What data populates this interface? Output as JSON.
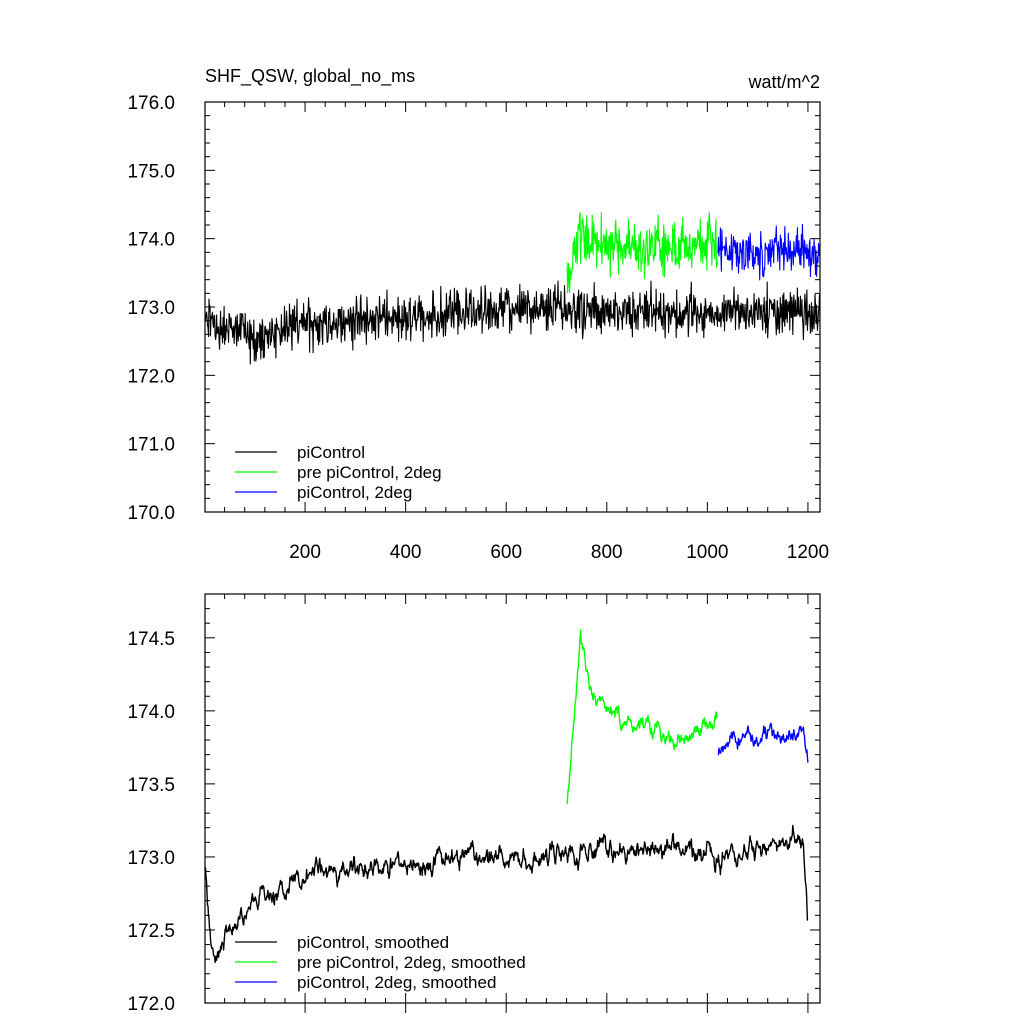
{
  "chart_data": [
    {
      "type": "line",
      "title": "SHF_QSW, global_no_ms",
      "units_label": "watt/m^2",
      "xlim": [
        1,
        1224
      ],
      "ylim": [
        170.0,
        176.0
      ],
      "x_ticks": [
        200,
        400,
        600,
        800,
        1000,
        1200
      ],
      "y_ticks": [
        170.0,
        171.0,
        172.0,
        173.0,
        174.0,
        175.0,
        176.0
      ],
      "y_tick_labels": [
        "170.0",
        "171.0",
        "172.0",
        "173.0",
        "174.0",
        "175.0",
        "176.0"
      ],
      "x_minor_step": 40,
      "y_minor_step": 0.2,
      "grid": false,
      "legend_position": "bottom-left",
      "series": [
        {
          "name": "piControl",
          "color": "#000000",
          "x_range": [
            1,
            1224
          ],
          "anchors": [
            [
              1,
              172.8
            ],
            [
              100,
              172.55
            ],
            [
              200,
              172.75
            ],
            [
              400,
              172.85
            ],
            [
              600,
              172.95
            ],
            [
              720,
              173.0
            ],
            [
              900,
              172.9
            ],
            [
              1100,
              172.95
            ],
            [
              1224,
              172.9
            ]
          ],
          "amplitude": 0.5
        },
        {
          "name": "pre piControl, 2deg",
          "color": "#00ff00",
          "x_range": [
            721,
            1020
          ],
          "anchors": [
            [
              721,
              173.3
            ],
            [
              745,
              174.1
            ],
            [
              800,
              173.9
            ],
            [
              900,
              173.85
            ],
            [
              1020,
              173.95
            ]
          ],
          "amplitude": 0.55
        },
        {
          "name": "piControl, 2deg",
          "color": "#0000ff",
          "x_range": [
            1021,
            1224
          ],
          "anchors": [
            [
              1021,
              173.9
            ],
            [
              1100,
              173.75
            ],
            [
              1200,
              173.85
            ],
            [
              1224,
              173.65
            ]
          ],
          "amplitude": 0.5
        }
      ]
    },
    {
      "type": "line",
      "xlim": [
        1,
        1224
      ],
      "ylim": [
        172.0,
        174.8
      ],
      "x_ticks": [
        200,
        400,
        600,
        800,
        1000,
        1200
      ],
      "y_ticks": [
        172.0,
        172.5,
        173.0,
        173.5,
        174.0,
        174.5
      ],
      "y_tick_labels": [
        "172.0",
        "172.5",
        "173.0",
        "173.5",
        "174.0",
        "174.5"
      ],
      "x_minor_step": 40,
      "y_minor_step": 0.1,
      "grid": false,
      "legend_position": "bottom-left",
      "series": [
        {
          "name": "piControl, smoothed",
          "color": "#000000",
          "x_range": [
            1,
            1200
          ],
          "anchors": [
            [
              1,
              172.9
            ],
            [
              20,
              172.3
            ],
            [
              60,
              172.55
            ],
            [
              120,
              172.75
            ],
            [
              200,
              172.85
            ],
            [
              300,
              172.9
            ],
            [
              400,
              172.95
            ],
            [
              500,
              173.0
            ],
            [
              600,
              173.0
            ],
            [
              700,
              173.05
            ],
            [
              800,
              173.05
            ],
            [
              900,
              173.05
            ],
            [
              1000,
              173.0
            ],
            [
              1100,
              173.05
            ],
            [
              1190,
              173.1
            ],
            [
              1200,
              172.6
            ]
          ],
          "amplitude": 0.22
        },
        {
          "name": "pre piControl, 2deg, smoothed",
          "color": "#00ff00",
          "x_range": [
            721,
            1020
          ],
          "anchors": [
            [
              721,
              173.35
            ],
            [
              735,
              173.9
            ],
            [
              748,
              174.55
            ],
            [
              770,
              174.1
            ],
            [
              830,
              173.95
            ],
            [
              900,
              173.85
            ],
            [
              960,
              173.75
            ],
            [
              1020,
              173.95
            ]
          ],
          "amplitude": 0.18
        },
        {
          "name": "piControl, 2deg, smoothed",
          "color": "#0000ff",
          "x_range": [
            1021,
            1200
          ],
          "anchors": [
            [
              1021,
              173.7
            ],
            [
              1080,
              173.85
            ],
            [
              1150,
              173.8
            ],
            [
              1190,
              173.9
            ],
            [
              1200,
              173.65
            ]
          ],
          "amplitude": 0.18
        }
      ]
    }
  ]
}
